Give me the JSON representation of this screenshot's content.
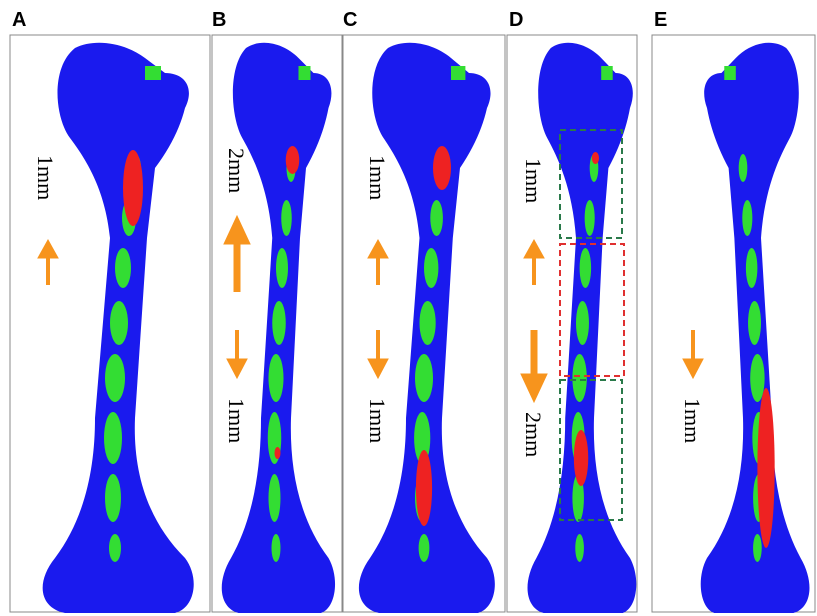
{
  "panels": [
    {
      "label": "A",
      "annotations": [
        "1mm"
      ]
    },
    {
      "label": "B",
      "annotations": [
        "2mm",
        "1mm"
      ]
    },
    {
      "label": "C",
      "annotations": [
        "1mm",
        "1mm"
      ]
    },
    {
      "label": "D",
      "annotations": [
        "1mm",
        "2mm"
      ]
    },
    {
      "label": "E",
      "annotations": [
        "1mm"
      ]
    }
  ]
}
